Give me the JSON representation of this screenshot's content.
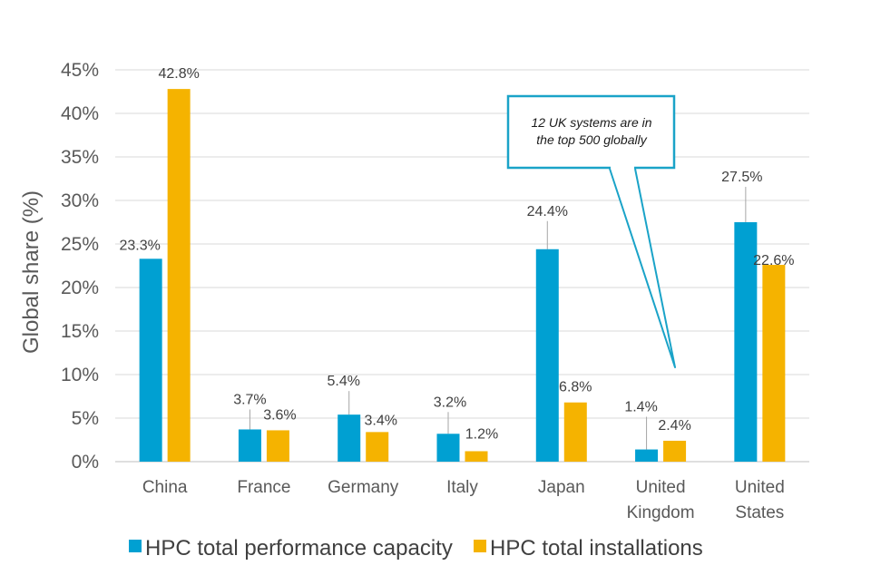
{
  "chart_data": {
    "type": "bar",
    "title": "",
    "xlabel": "",
    "ylabel": "Global share (%)",
    "ylim": [
      0,
      45
    ],
    "yticks": [
      "0%",
      "5%",
      "10%",
      "15%",
      "20%",
      "25%",
      "30%",
      "35%",
      "40%",
      "45%"
    ],
    "grid": true,
    "legend_position": "bottom",
    "categories": [
      [
        "China"
      ],
      [
        "France"
      ],
      [
        "Germany"
      ],
      [
        "Italy"
      ],
      [
        "Japan"
      ],
      [
        "United",
        "Kingdom"
      ],
      [
        "United",
        "States"
      ]
    ],
    "series": [
      {
        "name": "HPC total performance capacity",
        "color": "#00a0d2",
        "values": [
          23.3,
          3.7,
          5.4,
          3.2,
          24.4,
          1.4,
          27.5
        ],
        "labels": [
          "23.3%",
          "3.7%",
          "5.4%",
          "3.2%",
          "24.4%",
          "1.4%",
          "27.5%"
        ]
      },
      {
        "name": "HPC total installations",
        "color": "#f5b300",
        "values": [
          42.8,
          3.6,
          3.4,
          1.2,
          6.8,
          2.4,
          22.6
        ],
        "labels": [
          "42.8%",
          "3.6%",
          "3.4%",
          "1.2%",
          "6.8%",
          "2.4%",
          "22.6%"
        ]
      }
    ],
    "annotation": {
      "lines": [
        "12 UK systems are in",
        "the top 500 globally"
      ],
      "points_to": "United Kingdom",
      "border_color": "#1aa3c8"
    }
  }
}
